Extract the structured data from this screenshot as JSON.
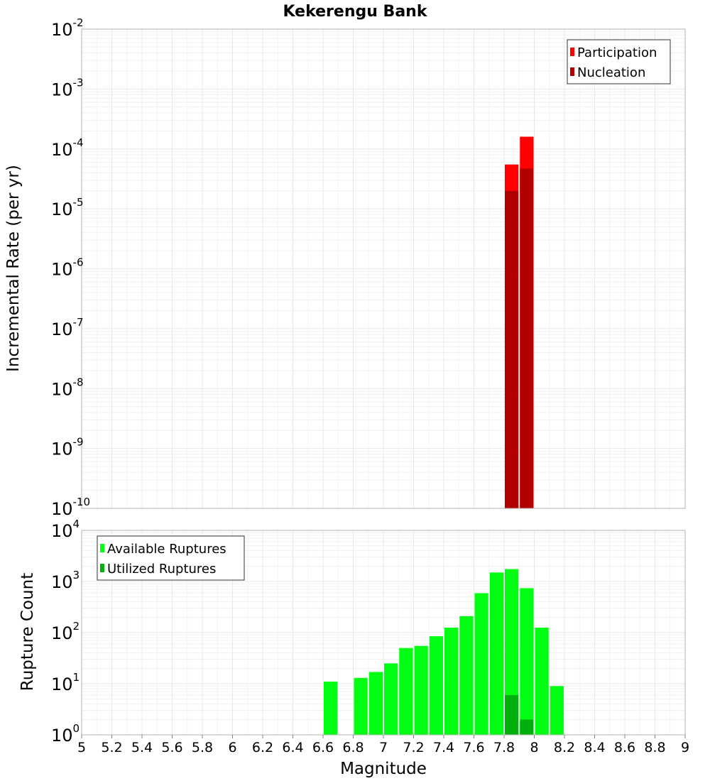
{
  "title": "Kekerengu Bank",
  "colors": {
    "participation": "#ff0000",
    "nucleation": "#b20000",
    "available": "#00ff12",
    "utilized": "#00b00c",
    "grid": "#e8e8e8",
    "frame": "#b0b0b0"
  },
  "chart_data": [
    {
      "type": "bar",
      "scale_y": "log",
      "xlabel": "Magnitude",
      "ylabel": "Incremental Rate (per yr)",
      "xlim": [
        5,
        9
      ],
      "ylim_exp": [
        -10,
        -2
      ],
      "y_tick_labels": [
        {
          "base": "10",
          "exp": "-2"
        },
        {
          "base": "10",
          "exp": "-3"
        },
        {
          "base": "10",
          "exp": "-4"
        },
        {
          "base": "10",
          "exp": "-5"
        },
        {
          "base": "10",
          "exp": "-6"
        },
        {
          "base": "10",
          "exp": "-7"
        },
        {
          "base": "10",
          "exp": "-8"
        },
        {
          "base": "10",
          "exp": "-9"
        },
        {
          "base": "10",
          "exp": "-10"
        }
      ],
      "legend": {
        "position": "top-right",
        "entries": [
          "Participation",
          "Nucleation"
        ]
      },
      "grid": true,
      "bin_width": 0.1,
      "series": [
        {
          "name": "Participation",
          "x": [
            7.85,
            7.95
          ],
          "values": [
            5.5e-05,
            0.00016
          ]
        },
        {
          "name": "Nucleation",
          "x": [
            7.85,
            7.95
          ],
          "values": [
            2e-05,
            4.7e-05
          ]
        }
      ]
    },
    {
      "type": "bar",
      "scale_y": "log",
      "xlabel": "Magnitude",
      "ylabel": "Rupture Count",
      "xlim": [
        5,
        9
      ],
      "ylim_exp": [
        0,
        4
      ],
      "y_tick_labels": [
        {
          "base": "10",
          "exp": "4"
        },
        {
          "base": "10",
          "exp": "3"
        },
        {
          "base": "10",
          "exp": "2"
        },
        {
          "base": "10",
          "exp": "1"
        },
        {
          "base": "10",
          "exp": "0"
        }
      ],
      "x_tick_labels": [
        "5",
        "5.2",
        "5.4",
        "5.6",
        "5.8",
        "6",
        "6.2",
        "6.4",
        "6.6",
        "6.8",
        "7",
        "7.2",
        "7.4",
        "7.6",
        "7.8",
        "8",
        "8.2",
        "8.4",
        "8.6",
        "8.8",
        "9"
      ],
      "legend": {
        "position": "top-left",
        "entries": [
          "Available Ruptures",
          "Utilized Ruptures"
        ]
      },
      "grid": true,
      "bin_width": 0.1,
      "series": [
        {
          "name": "Available Ruptures",
          "x": [
            6.65,
            6.85,
            6.95,
            7.05,
            7.15,
            7.25,
            7.35,
            7.45,
            7.55,
            7.65,
            7.75,
            7.85,
            7.95,
            8.05,
            8.15
          ],
          "values": [
            11,
            13,
            17,
            25,
            50,
            55,
            85,
            125,
            210,
            590,
            1500,
            1750,
            740,
            125,
            9
          ]
        },
        {
          "name": "Utilized Ruptures",
          "x": [
            7.65,
            7.85,
            7.95
          ],
          "values": [
            1,
            6,
            2
          ]
        }
      ]
    }
  ]
}
